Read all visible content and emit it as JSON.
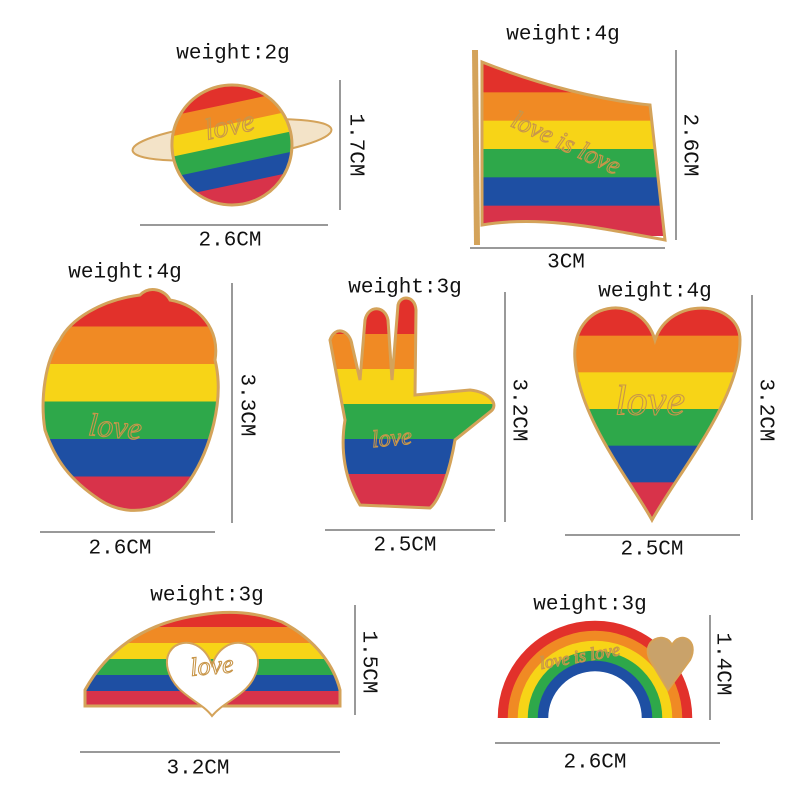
{
  "items": [
    {
      "weight": "weight:2g",
      "width": "2.6CM",
      "height": "1.7CM",
      "inscription": "love"
    },
    {
      "weight": "weight:4g",
      "width": "3CM",
      "height": "2.6CM",
      "inscription": "love is love"
    },
    {
      "weight": "weight:4g",
      "width": "2.6CM",
      "height": "3.3CM",
      "inscription": "love"
    },
    {
      "weight": "weight:3g",
      "width": "2.5CM",
      "height": "3.2CM",
      "inscription": "love"
    },
    {
      "weight": "weight:4g",
      "width": "2.5CM",
      "height": "3.2CM",
      "inscription": "love"
    },
    {
      "weight": "weight:3g",
      "width": "3.2CM",
      "height": "1.5CM",
      "inscription": "love"
    },
    {
      "weight": "weight:3g",
      "width": "2.6CM",
      "height": "1.4CM",
      "inscription": "love is love"
    }
  ]
}
